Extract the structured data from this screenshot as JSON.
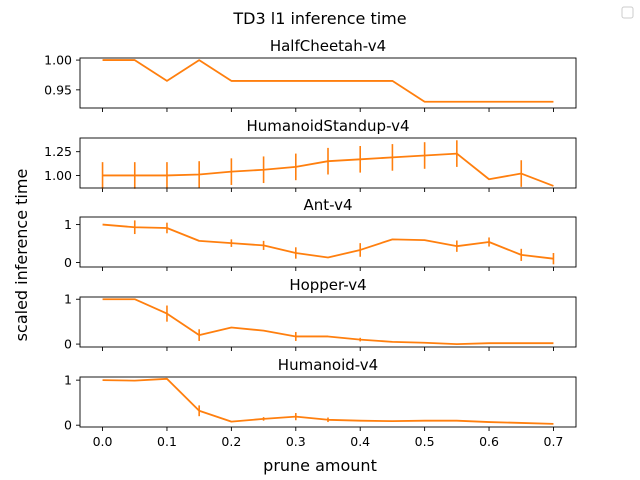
{
  "figure": {
    "suptitle": "TD3 l1 inference time",
    "ylabel": "scaled inference time",
    "xlabel": "prune amount"
  },
  "colors": {
    "series": "#ff7f0e",
    "errorbar": "#ff7f0e",
    "axes": "#000000"
  },
  "legend": {
    "placement": "top-right",
    "entries": []
  },
  "chart_data": [
    {
      "type": "line",
      "title": "HalfCheetah-v4",
      "x": [
        0.0,
        0.05,
        0.1,
        0.15,
        0.2,
        0.25,
        0.3,
        0.35,
        0.4,
        0.45,
        0.5,
        0.55,
        0.6,
        0.65,
        0.7
      ],
      "y": [
        1.0,
        1.0,
        0.965,
        1.0,
        0.965,
        0.965,
        0.965,
        0.965,
        0.965,
        0.965,
        0.93,
        0.93,
        0.93,
        0.93,
        0.93
      ],
      "yerr": [
        0,
        0,
        0,
        0,
        0,
        0,
        0,
        0,
        0,
        0,
        0,
        0,
        0,
        0,
        0
      ],
      "xlim": [
        -0.035,
        0.735
      ],
      "ylim": [
        0.9195,
        1.0035
      ],
      "yticks": [
        0.95,
        1.0
      ],
      "ytick_labels": [
        "0.95",
        "1.00"
      ],
      "grid": false
    },
    {
      "type": "line",
      "title": "HumanoidStandup-v4",
      "x": [
        0.0,
        0.05,
        0.1,
        0.15,
        0.2,
        0.25,
        0.3,
        0.35,
        0.4,
        0.45,
        0.5,
        0.55,
        0.6,
        0.65,
        0.7
      ],
      "y": [
        1.0,
        1.0,
        1.0,
        1.01,
        1.04,
        1.06,
        1.09,
        1.15,
        1.17,
        1.19,
        1.21,
        1.23,
        0.96,
        1.02,
        0.89
      ],
      "yerr": [
        0.14,
        0.14,
        0.14,
        0.14,
        0.14,
        0.14,
        0.14,
        0.14,
        0.14,
        0.14,
        0.14,
        0.14,
        0.0,
        0.14,
        0.0
      ],
      "xlim": [
        -0.035,
        0.735
      ],
      "ylim": [
        0.868,
        1.394
      ],
      "yticks": [
        1.0,
        1.25
      ],
      "ytick_labels": [
        "1.00",
        "1.25"
      ],
      "grid": false
    },
    {
      "type": "line",
      "title": "Ant-v4",
      "x": [
        0.0,
        0.05,
        0.1,
        0.15,
        0.2,
        0.25,
        0.3,
        0.35,
        0.4,
        0.45,
        0.5,
        0.55,
        0.6,
        0.65,
        0.7
      ],
      "y": [
        1.0,
        0.93,
        0.91,
        0.57,
        0.51,
        0.45,
        0.25,
        0.13,
        0.33,
        0.61,
        0.59,
        0.43,
        0.54,
        0.2,
        0.1
      ],
      "yerr": [
        0,
        0.18,
        0.14,
        0,
        0.1,
        0.12,
        0.15,
        0,
        0.18,
        0,
        0,
        0.15,
        0.12,
        0.16,
        0.15
      ],
      "xlim": [
        -0.035,
        0.735
      ],
      "ylim": [
        -0.12,
        1.2
      ],
      "yticks": [
        0,
        1
      ],
      "ytick_labels": [
        "0",
        "1"
      ],
      "grid": false
    },
    {
      "type": "line",
      "title": "Hopper-v4",
      "x": [
        0.0,
        0.05,
        0.1,
        0.15,
        0.2,
        0.25,
        0.3,
        0.35,
        0.4,
        0.45,
        0.5,
        0.55,
        0.6,
        0.65,
        0.7
      ],
      "y": [
        1.0,
        1.0,
        0.68,
        0.2,
        0.37,
        0.3,
        0.17,
        0.17,
        0.1,
        0.05,
        0.03,
        0.0,
        0.02,
        0.02,
        0.02
      ],
      "yerr": [
        0,
        0,
        0.18,
        0.13,
        0,
        0,
        0.1,
        0,
        0.04,
        0,
        0,
        0,
        0,
        0,
        0
      ],
      "xlim": [
        -0.035,
        0.735
      ],
      "ylim": [
        -0.065,
        1.05
      ],
      "yticks": [
        0,
        1
      ],
      "ytick_labels": [
        "0",
        "1"
      ],
      "grid": false
    },
    {
      "type": "line",
      "title": "Humanoid-v4",
      "x": [
        0.0,
        0.05,
        0.1,
        0.15,
        0.2,
        0.25,
        0.3,
        0.35,
        0.4,
        0.45,
        0.5,
        0.55,
        0.6,
        0.65,
        0.7
      ],
      "y": [
        1.0,
        0.99,
        1.03,
        0.32,
        0.08,
        0.14,
        0.19,
        0.12,
        0.1,
        0.09,
        0.1,
        0.1,
        0.07,
        0.05,
        0.03
      ],
      "yerr": [
        0,
        0,
        0,
        0.12,
        0,
        0.04,
        0.08,
        0.05,
        0,
        0,
        0,
        0,
        0,
        0,
        0
      ],
      "xlim": [
        -0.035,
        0.735
      ],
      "ylim": [
        -0.04,
        1.07
      ],
      "yticks": [
        0,
        1
      ],
      "ytick_labels": [
        "0",
        "1"
      ],
      "grid": false
    }
  ],
  "shared_xaxis": {
    "ticks": [
      0.0,
      0.1,
      0.2,
      0.3,
      0.4,
      0.5,
      0.6,
      0.7
    ],
    "tick_labels": [
      "0.0",
      "0.1",
      "0.2",
      "0.3",
      "0.4",
      "0.5",
      "0.6",
      "0.7"
    ]
  }
}
